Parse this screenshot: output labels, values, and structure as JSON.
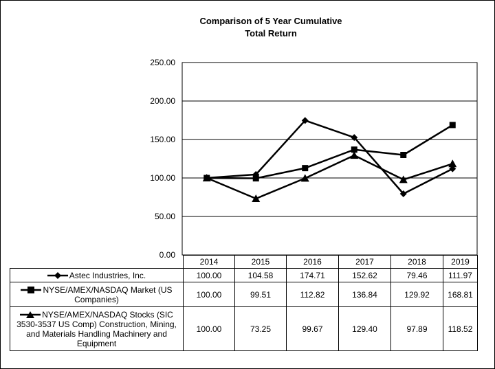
{
  "chart_data": {
    "type": "line",
    "title": "Comparison of 5 Year Cumulative Total Return",
    "categories": [
      "2014",
      "2015",
      "2016",
      "2017",
      "2018",
      "2019"
    ],
    "ylim": [
      0,
      250
    ],
    "yticks": [
      "0.00",
      "50.00",
      "100.00",
      "150.00",
      "200.00",
      "250.00"
    ],
    "grid": true,
    "series": [
      {
        "name": "Astec Industries, Inc.",
        "marker": "diamond",
        "values": [
          100.0,
          104.58,
          174.71,
          152.62,
          79.46,
          111.97
        ],
        "labels": [
          "100.00",
          "104.58",
          "174.71",
          "152.62",
          "79.46",
          "111.97"
        ]
      },
      {
        "name": "NYSE/AMEX/NASDAQ Market (US Companies)",
        "marker": "square",
        "values": [
          100.0,
          99.51,
          112.82,
          136.84,
          129.92,
          168.81
        ],
        "labels": [
          "100.00",
          "99.51",
          "112.82",
          "136.84",
          "129.92",
          "168.81"
        ]
      },
      {
        "name": "NYSE/AMEX/NASDAQ Stocks (SIC 3530-3537 US Comp) Construction, Mining, and Materials Handling Machinery and Equipment",
        "marker": "triangle",
        "values": [
          100.0,
          73.25,
          99.67,
          129.4,
          97.89,
          118.52
        ],
        "labels": [
          "100.00",
          "73.25",
          "99.67",
          "129.40",
          "97.89",
          "118.52"
        ]
      }
    ]
  }
}
